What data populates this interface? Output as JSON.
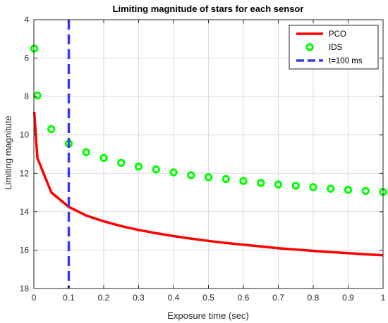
{
  "chart_data": {
    "type": "line",
    "title": "Limiting magnitude of stars for each sensor",
    "xlabel": "Exposure time (sec)",
    "ylabel": "Limiting magnitute",
    "xlim": [
      0,
      1
    ],
    "ylim": [
      4,
      18
    ],
    "y_reversed": true,
    "grid": true,
    "legend_position": "top-right",
    "x_ticks": [
      "0",
      "0.1",
      "0.2",
      "0.3",
      "0.4",
      "0.5",
      "0.6",
      "0.7",
      "0.8",
      "0.9",
      "1"
    ],
    "y_ticks": [
      "4",
      "6",
      "8",
      "10",
      "12",
      "14",
      "16",
      "18"
    ],
    "series": [
      {
        "name": "PCO",
        "style": "solid-line",
        "color": "#ff0000",
        "x": [
          0.001,
          0.01,
          0.05,
          0.1,
          0.15,
          0.2,
          0.25,
          0.3,
          0.35,
          0.4,
          0.45,
          0.5,
          0.55,
          0.6,
          0.65,
          0.7,
          0.75,
          0.8,
          0.85,
          0.9,
          0.95,
          1.0
        ],
        "y": [
          8.8,
          11.2,
          13.0,
          13.75,
          14.2,
          14.5,
          14.75,
          14.95,
          15.12,
          15.27,
          15.4,
          15.52,
          15.63,
          15.72,
          15.81,
          15.9,
          15.97,
          16.04,
          16.1,
          16.16,
          16.22,
          16.27
        ]
      },
      {
        "name": "IDS",
        "style": "circle-markers",
        "color": "#00ff00",
        "x": [
          0.001,
          0.01,
          0.05,
          0.1,
          0.15,
          0.2,
          0.25,
          0.3,
          0.35,
          0.4,
          0.45,
          0.5,
          0.55,
          0.6,
          0.65,
          0.7,
          0.75,
          0.8,
          0.85,
          0.9,
          0.95,
          1.0
        ],
        "y": [
          5.5,
          7.95,
          9.7,
          10.45,
          10.9,
          11.2,
          11.45,
          11.65,
          11.8,
          11.95,
          12.1,
          12.2,
          12.3,
          12.4,
          12.5,
          12.58,
          12.65,
          12.72,
          12.8,
          12.86,
          12.92,
          12.97
        ]
      },
      {
        "name": "t=100 ms",
        "style": "dashed-vertical-line",
        "color": "#3b3bf0",
        "x_value": 0.1
      }
    ]
  }
}
